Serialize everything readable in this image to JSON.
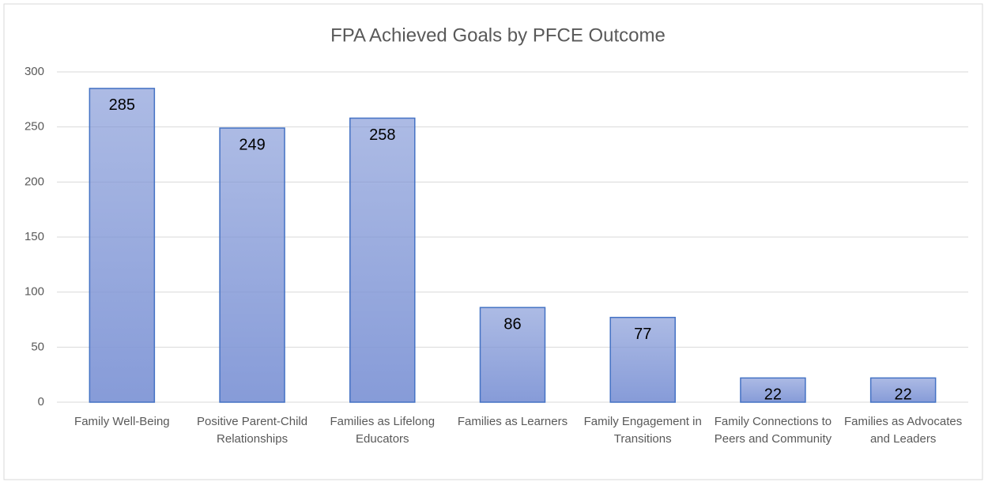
{
  "chart_data": {
    "type": "bar",
    "title": "FPA Achieved Goals by PFCE Outcome",
    "categories": [
      "Family Well-Being",
      "Positive Parent-Child Relationships",
      "Families as Lifelong Educators",
      "Families as Learners",
      "Family Engagement in Transitions",
      "Family Connections to Peers and Community",
      "Families as Advocates and Leaders"
    ],
    "values": [
      285,
      249,
      258,
      86,
      77,
      22,
      22
    ],
    "color": "#8096d6",
    "ylim": [
      0,
      300
    ],
    "yticks": [
      0,
      50,
      100,
      150,
      200,
      250,
      300
    ],
    "grid": true
  }
}
